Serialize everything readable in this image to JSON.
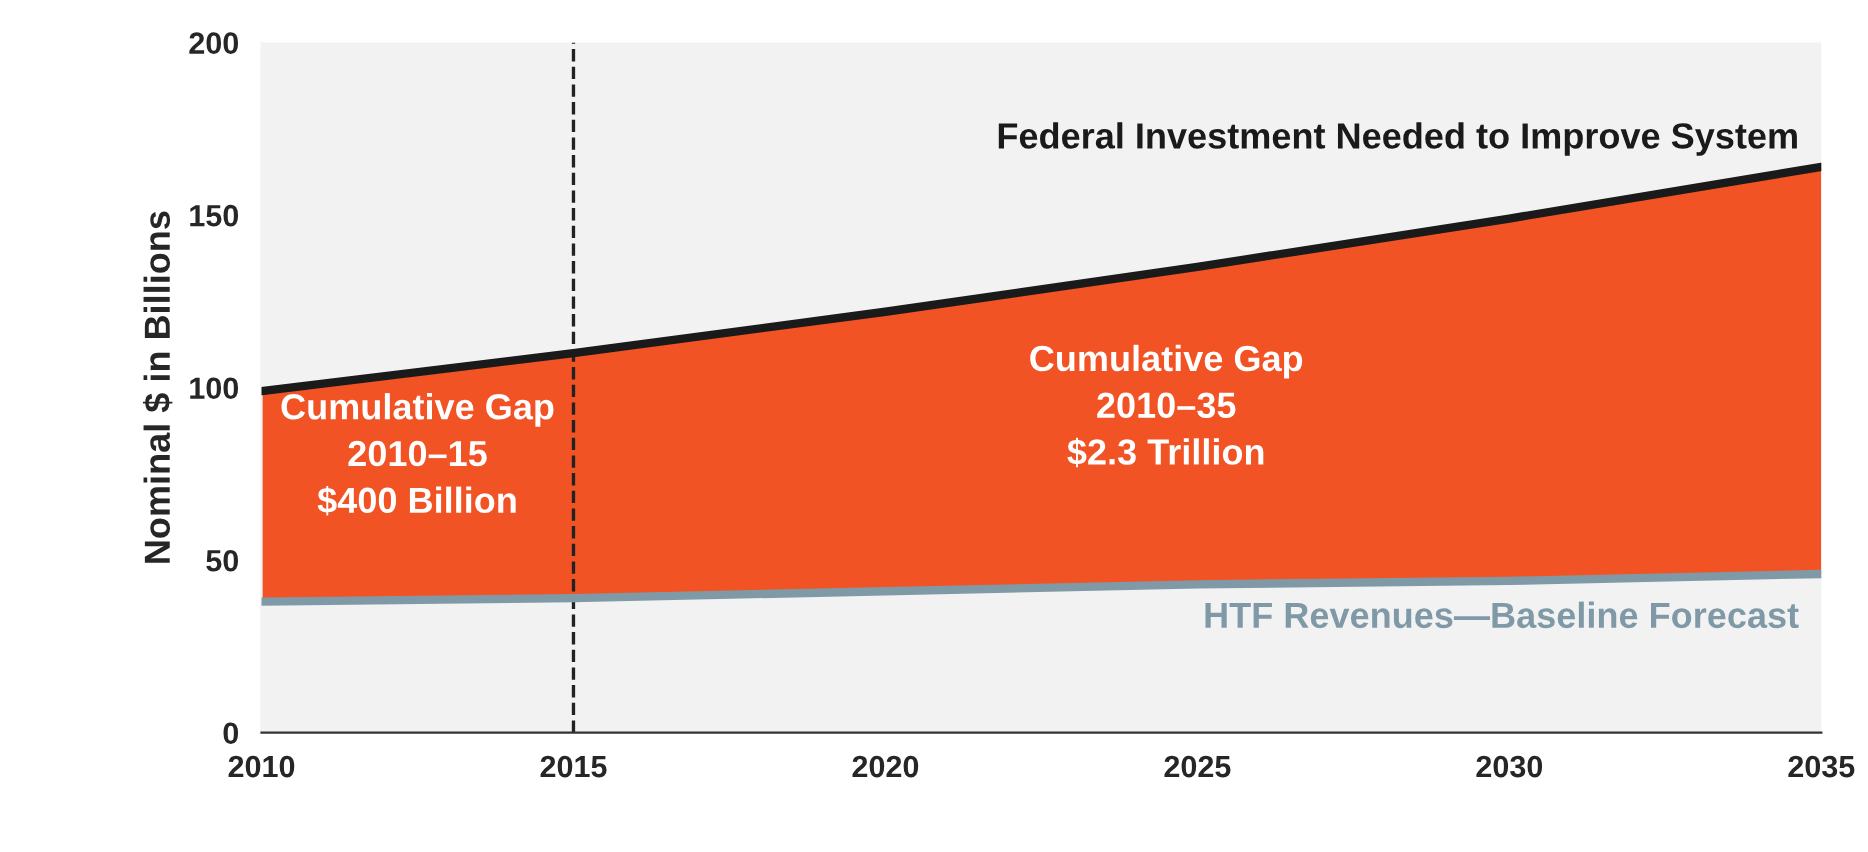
{
  "chart_data": {
    "type": "line",
    "ylabel": "Nominal $ in Billions",
    "x": [
      2010,
      2015,
      2020,
      2025,
      2030,
      2035
    ],
    "series": [
      {
        "name": "Federal Investment Needed to Improve System",
        "color": "#1a1a1a",
        "values": [
          99,
          110,
          122,
          135,
          149,
          164
        ],
        "lower": [
          38,
          39,
          41,
          43,
          44,
          46
        ],
        "upper": [
          99,
          110,
          122,
          135,
          149,
          164
        ]
      },
      {
        "name": "HTF Revenues—Baseline Forecast",
        "color": "#7f9aa6",
        "values": [
          38,
          39,
          41,
          43,
          44,
          46
        ]
      }
    ],
    "ref_lines": [
      {
        "axis": "x",
        "value": 2015,
        "label": null,
        "color": "#222222",
        "line_style": "dashed"
      }
    ],
    "annotations": [
      "Cumulative Gap\n2010–15\n$400 Billion",
      "Cumulative Gap\n2010–35\n$2.3 Trillion"
    ],
    "xlim": [
      2010,
      2035
    ],
    "xticks": [
      2010,
      2015,
      2020,
      2025,
      2030,
      2035
    ],
    "ylim": [
      0,
      200
    ],
    "yticks": [
      0,
      50,
      100,
      150,
      200
    ],
    "grid": false,
    "legend": false,
    "marker": "none",
    "line_style": "solid"
  }
}
